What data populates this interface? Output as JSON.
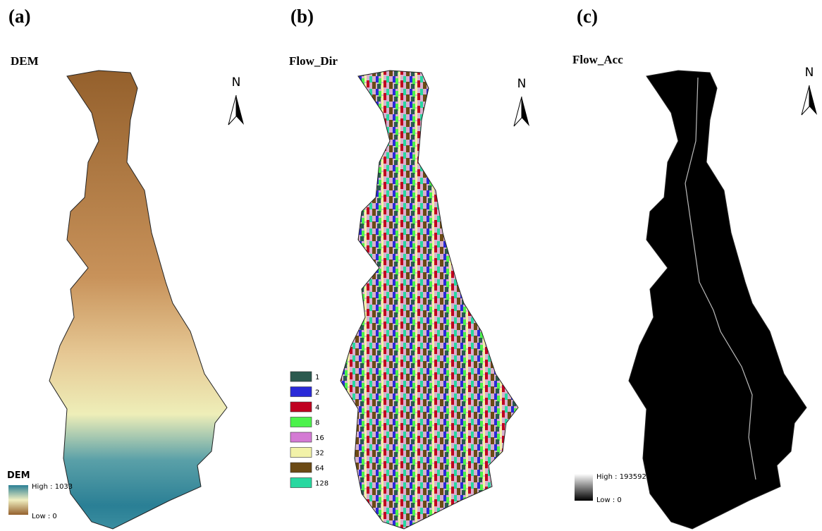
{
  "panels": [
    {
      "label": "(a)",
      "title": "DEM",
      "north": "N",
      "legend": {
        "title": "DEM",
        "high": "High : 1033",
        "low": "Low : 0"
      }
    },
    {
      "label": "(b)",
      "title": "Flow_Dir",
      "north": "N",
      "legend": {
        "items": [
          {
            "label": 1,
            "color": "#2b5a4f"
          },
          {
            "label": 2,
            "color": "#2a2ad8"
          },
          {
            "label": 4,
            "color": "#c00020"
          },
          {
            "label": 8,
            "color": "#4cf24c"
          },
          {
            "label": 16,
            "color": "#d47ad4"
          },
          {
            "label": 32,
            "color": "#f2f2a8"
          },
          {
            "label": 64,
            "color": "#6b4a14"
          },
          {
            "label": 128,
            "color": "#28d8a0"
          }
        ]
      }
    },
    {
      "label": "(c)",
      "title": "Flow_Acc",
      "north": "N",
      "legend": {
        "high": "High : 193592",
        "low": "Low : 0"
      }
    }
  ]
}
